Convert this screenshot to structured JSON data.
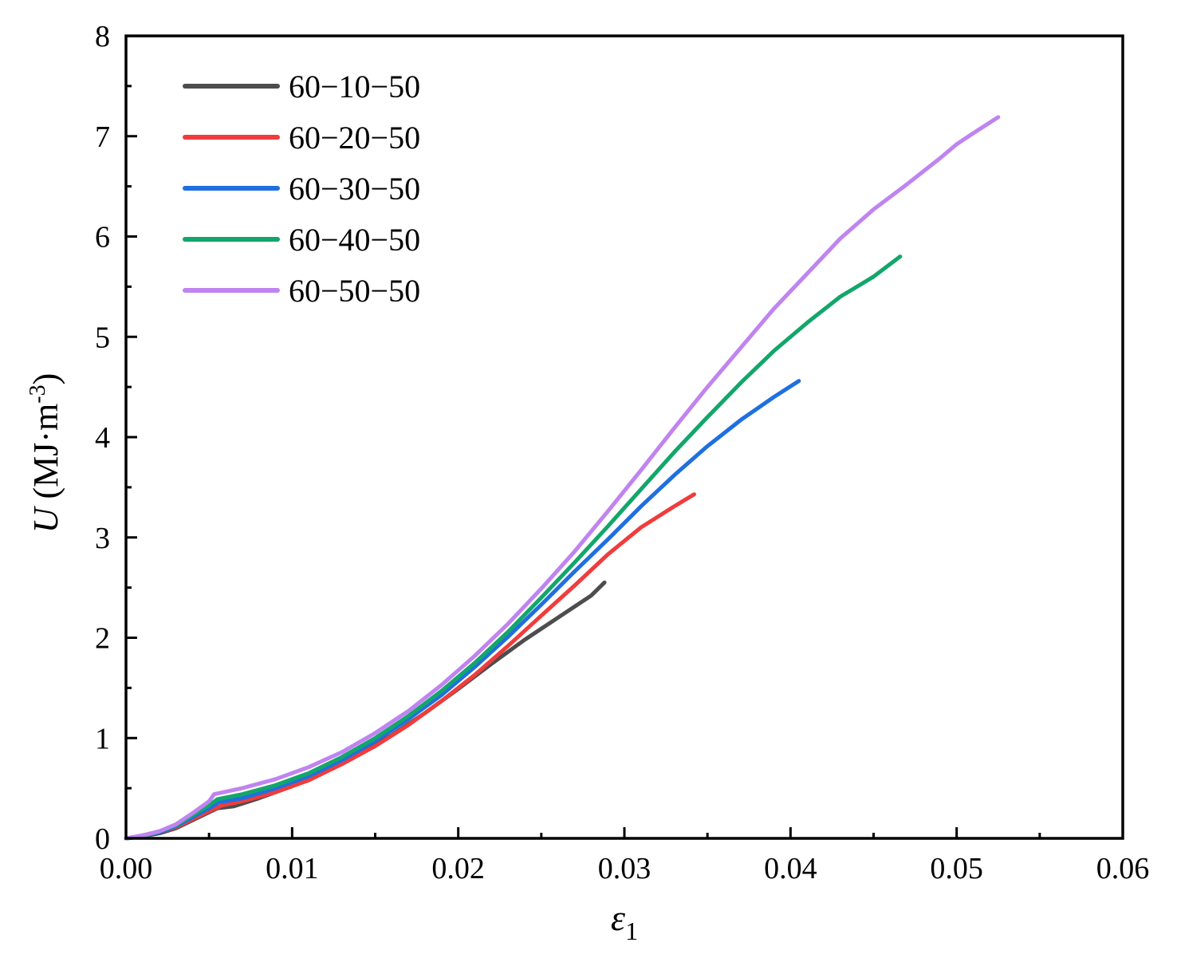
{
  "chart_data": {
    "type": "line",
    "xlabel": "ε",
    "xlabel_sub": "1",
    "ylabel_symbol": "U",
    "ylabel_unit_prefix": " (MJ·m",
    "ylabel_unit_sup": "-3",
    "ylabel_unit_suffix": ")",
    "xlim": [
      0,
      0.06
    ],
    "ylim": [
      0,
      8
    ],
    "x_ticks": [
      "0.00",
      "0.01",
      "0.02",
      "0.03",
      "0.04",
      "0.05",
      "0.06"
    ],
    "y_ticks": [
      "0",
      "1",
      "2",
      "3",
      "4",
      "5",
      "6",
      "7",
      "8"
    ],
    "grid": false,
    "legend_position": "top-left",
    "series": [
      {
        "name": "60−10−50",
        "color": "#4d4d4d",
        "x": [
          0,
          0.001,
          0.002,
          0.003,
          0.004,
          0.005,
          0.0055,
          0.0065,
          0.008,
          0.01,
          0.012,
          0.014,
          0.016,
          0.018,
          0.02,
          0.022,
          0.024,
          0.026,
          0.028,
          0.0288
        ],
        "y": [
          0,
          0.02,
          0.05,
          0.1,
          0.18,
          0.26,
          0.3,
          0.32,
          0.4,
          0.52,
          0.67,
          0.84,
          1.03,
          1.25,
          1.49,
          1.74,
          1.98,
          2.2,
          2.42,
          2.55
        ]
      },
      {
        "name": "60−20−50",
        "color": "#f03c3c",
        "x": [
          0,
          0.001,
          0.002,
          0.003,
          0.004,
          0.005,
          0.0058,
          0.007,
          0.009,
          0.011,
          0.013,
          0.015,
          0.017,
          0.019,
          0.021,
          0.023,
          0.025,
          0.027,
          0.029,
          0.031,
          0.033,
          0.0342
        ],
        "y": [
          0,
          0.02,
          0.06,
          0.11,
          0.19,
          0.27,
          0.33,
          0.37,
          0.46,
          0.58,
          0.74,
          0.92,
          1.13,
          1.37,
          1.63,
          1.92,
          2.22,
          2.52,
          2.83,
          3.1,
          3.31,
          3.43
        ]
      },
      {
        "name": "60−30−50",
        "color": "#1f6fe0",
        "x": [
          0,
          0.001,
          0.002,
          0.003,
          0.004,
          0.005,
          0.0056,
          0.007,
          0.009,
          0.011,
          0.013,
          0.015,
          0.017,
          0.019,
          0.021,
          0.023,
          0.025,
          0.027,
          0.029,
          0.031,
          0.033,
          0.035,
          0.037,
          0.039,
          0.0405
        ],
        "y": [
          0,
          0.02,
          0.06,
          0.12,
          0.21,
          0.3,
          0.36,
          0.4,
          0.5,
          0.62,
          0.78,
          0.97,
          1.19,
          1.43,
          1.71,
          2.01,
          2.33,
          2.66,
          2.98,
          3.31,
          3.62,
          3.91,
          4.17,
          4.4,
          4.56
        ]
      },
      {
        "name": "60−40−50",
        "color": "#13a66b",
        "x": [
          0,
          0.001,
          0.002,
          0.003,
          0.004,
          0.005,
          0.0055,
          0.007,
          0.009,
          0.011,
          0.013,
          0.015,
          0.017,
          0.019,
          0.021,
          0.023,
          0.025,
          0.027,
          0.029,
          0.031,
          0.033,
          0.035,
          0.037,
          0.039,
          0.041,
          0.043,
          0.044,
          0.045,
          0.0466
        ],
        "y": [
          0,
          0.02,
          0.07,
          0.13,
          0.23,
          0.33,
          0.39,
          0.44,
          0.53,
          0.65,
          0.81,
          1.0,
          1.22,
          1.47,
          1.75,
          2.06,
          2.4,
          2.75,
          3.11,
          3.48,
          3.85,
          4.2,
          4.54,
          4.86,
          5.14,
          5.4,
          5.5,
          5.6,
          5.8
        ]
      },
      {
        "name": "60−50−50",
        "color": "#c084f0",
        "x": [
          0,
          0.001,
          0.002,
          0.003,
          0.004,
          0.005,
          0.0053,
          0.007,
          0.009,
          0.011,
          0.013,
          0.015,
          0.017,
          0.019,
          0.021,
          0.023,
          0.025,
          0.027,
          0.029,
          0.031,
          0.033,
          0.035,
          0.037,
          0.039,
          0.041,
          0.043,
          0.045,
          0.047,
          0.049,
          0.05,
          0.051,
          0.0525
        ],
        "y": [
          0,
          0.03,
          0.07,
          0.14,
          0.25,
          0.37,
          0.44,
          0.5,
          0.59,
          0.71,
          0.86,
          1.05,
          1.27,
          1.53,
          1.82,
          2.14,
          2.49,
          2.86,
          3.26,
          3.67,
          4.09,
          4.5,
          4.89,
          5.28,
          5.63,
          5.98,
          6.27,
          6.52,
          6.78,
          6.92,
          7.03,
          7.19
        ]
      }
    ]
  }
}
